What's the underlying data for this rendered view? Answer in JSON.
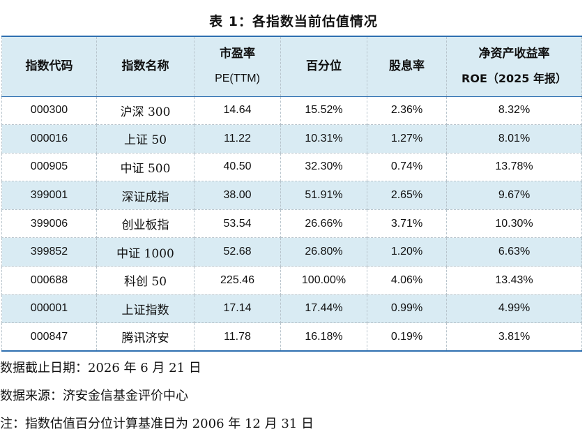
{
  "title": "表 1：各指数当前估值情况",
  "table": {
    "headers": [
      {
        "line1": "指数代码",
        "line2": ""
      },
      {
        "line1": "指数名称",
        "line2": ""
      },
      {
        "line1": "市盈率",
        "line2": "PE(TTM)"
      },
      {
        "line1": "百分位",
        "line2": ""
      },
      {
        "line1": "股息率",
        "line2": ""
      },
      {
        "line1": "净资产收益率",
        "line2": "ROE（2025 年报）"
      }
    ],
    "rows": [
      {
        "code": "000300",
        "name": "沪深 300",
        "pe": "14.64",
        "percentile": "15.52%",
        "dividend": "2.36%",
        "roe": "8.32%"
      },
      {
        "code": "000016",
        "name": "上证 50",
        "pe": "11.22",
        "percentile": "10.31%",
        "dividend": "1.27%",
        "roe": "8.01%"
      },
      {
        "code": "000905",
        "name": "中证 500",
        "pe": "40.50",
        "percentile": "32.30%",
        "dividend": "0.74%",
        "roe": "13.78%"
      },
      {
        "code": "399001",
        "name": "深证成指",
        "pe": "38.00",
        "percentile": "51.91%",
        "dividend": "2.65%",
        "roe": "9.67%"
      },
      {
        "code": "399006",
        "name": "创业板指",
        "pe": "53.54",
        "percentile": "26.66%",
        "dividend": "3.71%",
        "roe": "10.30%"
      },
      {
        "code": "399852",
        "name": "中证 1000",
        "pe": "52.68",
        "percentile": "26.80%",
        "dividend": "1.20%",
        "roe": "6.63%"
      },
      {
        "code": "000688",
        "name": "科创 50",
        "pe": "225.46",
        "percentile": "100.00%",
        "dividend": "4.06%",
        "roe": "13.43%"
      },
      {
        "code": "000001",
        "name": "上证指数",
        "pe": "17.14",
        "percentile": "17.44%",
        "dividend": "0.99%",
        "roe": "4.99%"
      },
      {
        "code": "000847",
        "name": "腾讯济安",
        "pe": "11.78",
        "percentile": "16.18%",
        "dividend": "0.19%",
        "roe": "3.81%"
      }
    ]
  },
  "notes": {
    "date": "数据截止日期：2026 年 6 月 21 日",
    "source": "数据来源：济安金信基金评价中心",
    "footnote": "注：指数估值百分位计算基准日为 2006 年 12 月 31 日"
  },
  "colors": {
    "header_bg": "#d9ebf3",
    "stripe_bg": "#d9ebf3",
    "rule": "#2e6fb0",
    "grid": "#b8c4cc"
  }
}
